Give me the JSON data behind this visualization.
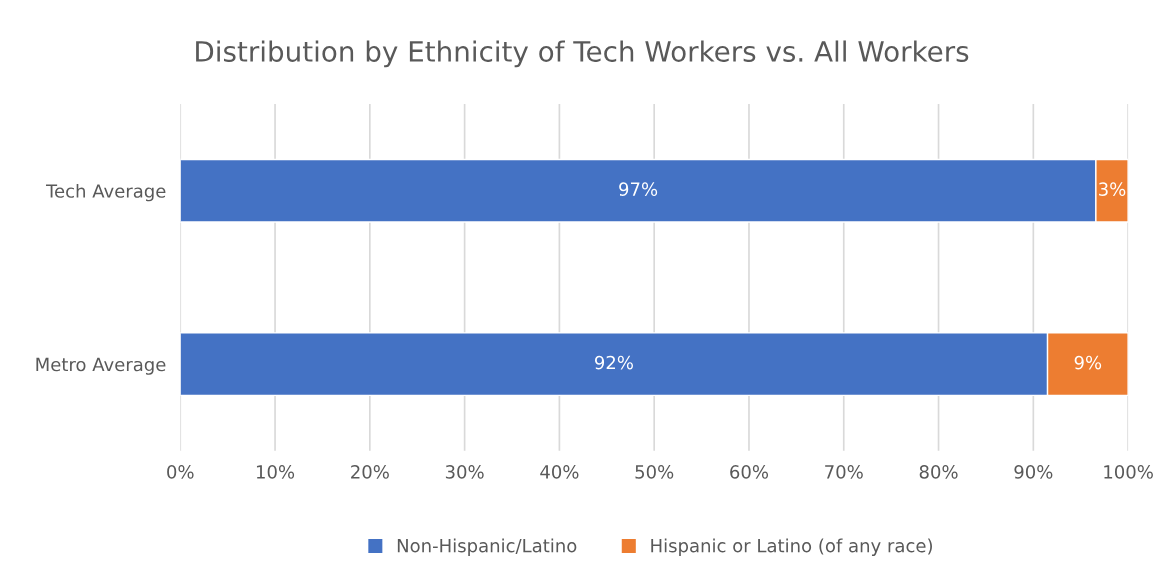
{
  "chart_data": {
    "type": "bar",
    "orientation": "horizontal",
    "stacked": true,
    "title": "Distribution by Ethnicity of Tech Workers vs. All Workers",
    "categories": [
      "Tech Average",
      "Metro Average"
    ],
    "series": [
      {
        "name": "Non-Hispanic/Latino",
        "color": "#4472c4",
        "values": [
          96.6,
          91.5
        ],
        "value_labels": [
          "97%",
          "92%"
        ]
      },
      {
        "name": "Hispanic or Latino (of any race)",
        "color": "#ed7d31",
        "values": [
          3.4,
          8.5
        ],
        "value_labels": [
          "3%",
          "9%"
        ]
      }
    ],
    "xlim": [
      0,
      100
    ],
    "xticks": [
      {
        "value": 0,
        "label": "0%"
      },
      {
        "value": 10,
        "label": "10%"
      },
      {
        "value": 20,
        "label": "20%"
      },
      {
        "value": 30,
        "label": "30%"
      },
      {
        "value": 40,
        "label": "40%"
      },
      {
        "value": 50,
        "label": "50%"
      },
      {
        "value": 60,
        "label": "60%"
      },
      {
        "value": 70,
        "label": "70%"
      },
      {
        "value": 80,
        "label": "80%"
      },
      {
        "value": 90,
        "label": "90%"
      },
      {
        "value": 100,
        "label": "100%"
      }
    ],
    "grid": "x",
    "legend": "bottom"
  }
}
